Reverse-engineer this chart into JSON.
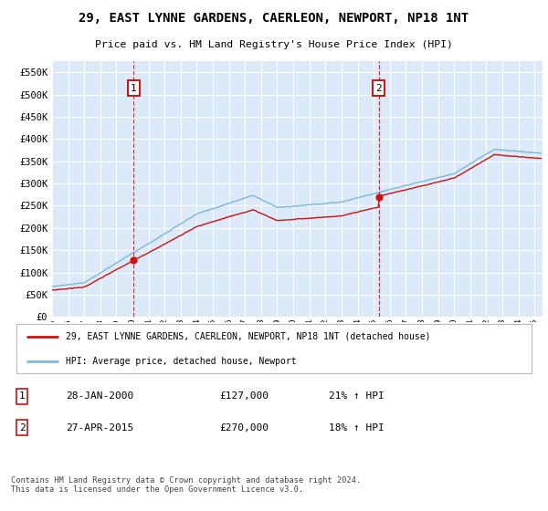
{
  "title": "29, EAST LYNNE GARDENS, CAERLEON, NEWPORT, NP18 1NT",
  "subtitle": "Price paid vs. HM Land Registry's House Price Index (HPI)",
  "background_color": "#dce9f8",
  "plot_bg_color": "#dce9f8",
  "ylim": [
    0,
    575000
  ],
  "yticks": [
    0,
    50000,
    100000,
    150000,
    200000,
    250000,
    300000,
    350000,
    400000,
    450000,
    500000,
    550000
  ],
  "xlim_start": 1995.0,
  "xlim_end": 2025.5,
  "sale1_x": 2000.08,
  "sale1_y": 127000,
  "sale1_label": "1",
  "sale1_date": "28-JAN-2000",
  "sale1_price": "£127,000",
  "sale1_hpi": "21% ↑ HPI",
  "sale2_x": 2015.33,
  "sale2_y": 270000,
  "sale2_label": "2",
  "sale2_date": "27-APR-2015",
  "sale2_price": "£270,000",
  "sale2_hpi": "18% ↑ HPI",
  "legend_line1": "29, EAST LYNNE GARDENS, CAERLEON, NEWPORT, NP18 1NT (detached house)",
  "legend_line2": "HPI: Average price, detached house, Newport",
  "footer": "Contains HM Land Registry data © Crown copyright and database right 2024.\nThis data is licensed under the Open Government Licence v3.0.",
  "hpi_color": "#7ab8d9",
  "price_color": "#cc1111",
  "sale_marker_color": "#cc1111",
  "dashed_line_color": "#cc1111",
  "box_color": "#cc1111"
}
